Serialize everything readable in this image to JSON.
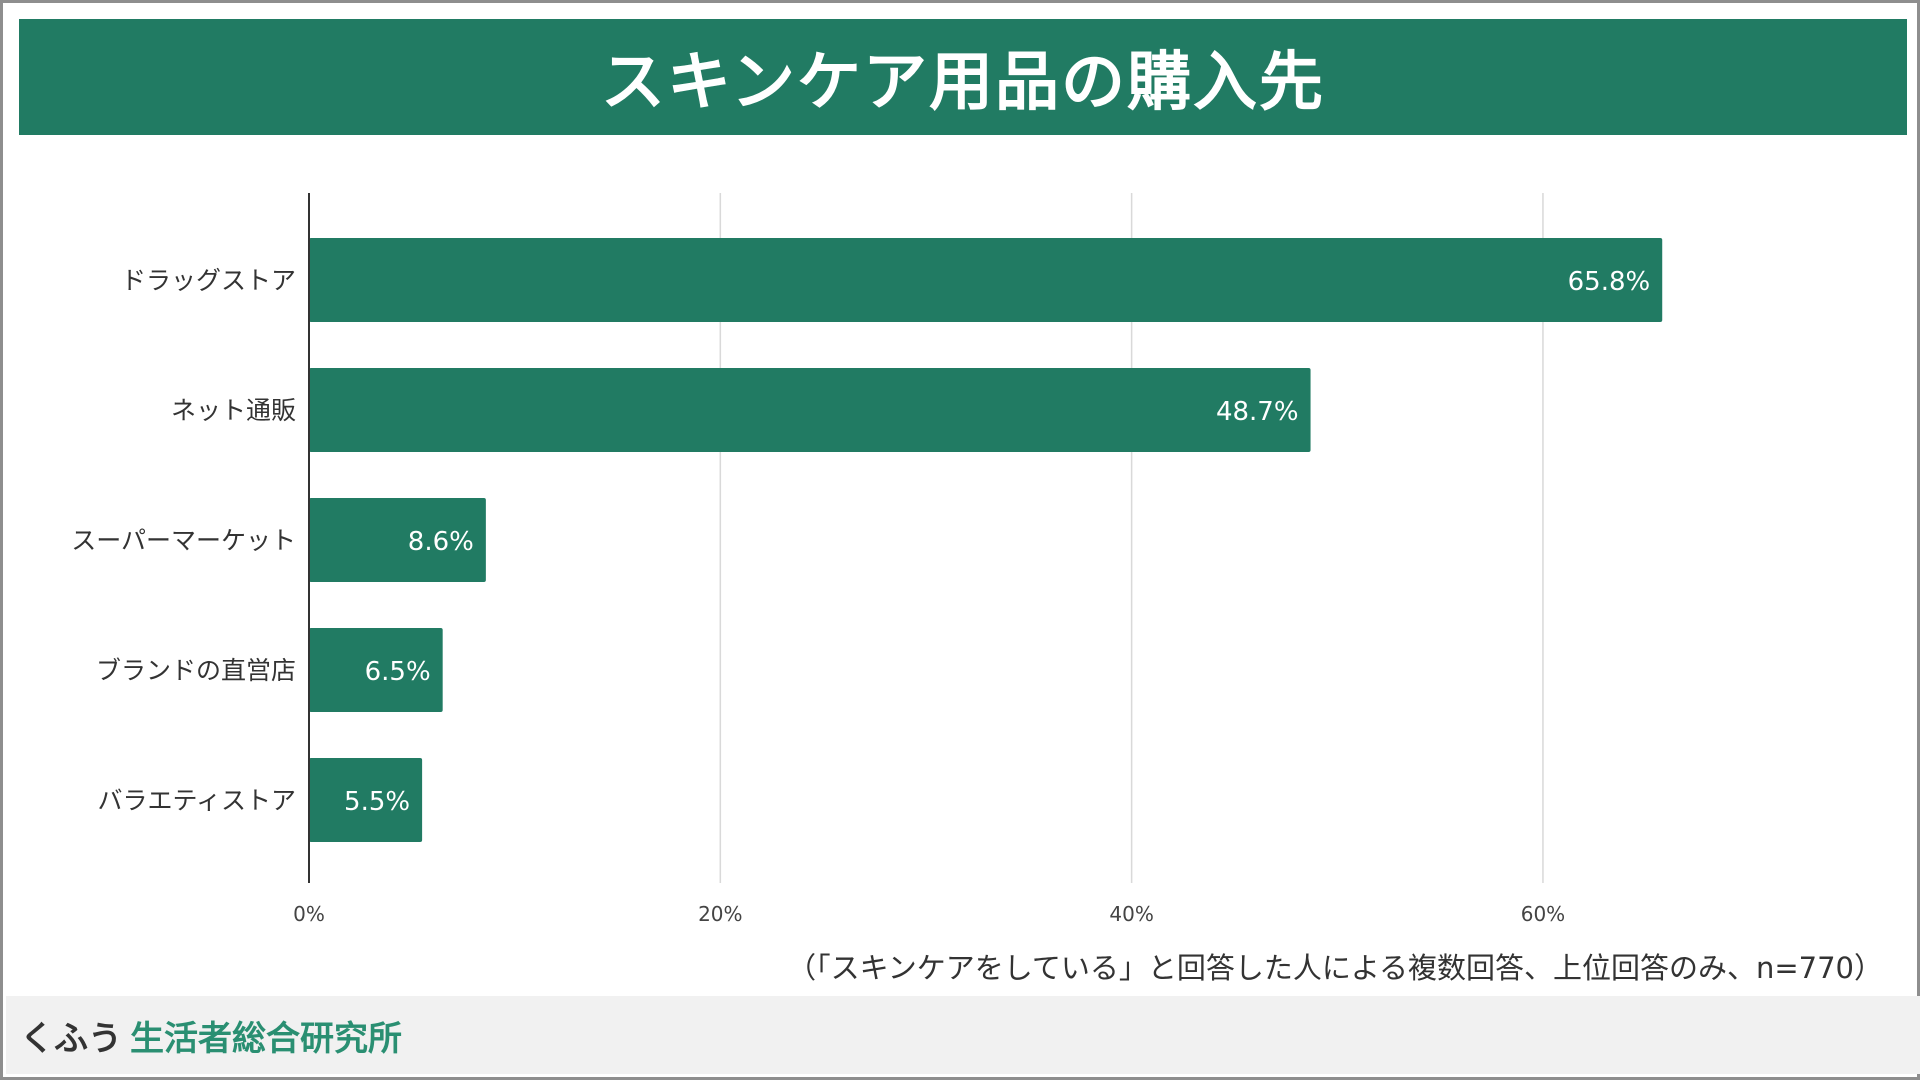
{
  "header": {
    "title": "スキンケア用品の購入先"
  },
  "note": "（「スキンケアをしている」と回答した人による複数回答、上位回答のみ、n=770）",
  "footer": {
    "logo": "くふう",
    "org": "生活者総合研究所"
  },
  "colors": {
    "brand_green": "#217b63",
    "footer_green": "#2a8f72",
    "grid": "#d9d9d9",
    "axis": "#333333"
  },
  "chart_data": {
    "type": "bar",
    "orientation": "horizontal",
    "title": "スキンケア用品の購入先",
    "categories": [
      "ドラッグストア",
      "ネット通販",
      "スーパーマーケット",
      "ブランドの直営店",
      "バラエティストア"
    ],
    "values": [
      65.8,
      48.7,
      8.6,
      6.5,
      5.5
    ],
    "data_labels": [
      "65.8%",
      "48.7%",
      "8.6%",
      "6.5%",
      "5.5%"
    ],
    "xlim": [
      0,
      76
    ],
    "x_ticks": [
      0,
      20,
      40,
      60
    ],
    "x_tick_labels": [
      "0%",
      "20%",
      "40%",
      "60%"
    ],
    "grid": true,
    "legend": "none"
  }
}
